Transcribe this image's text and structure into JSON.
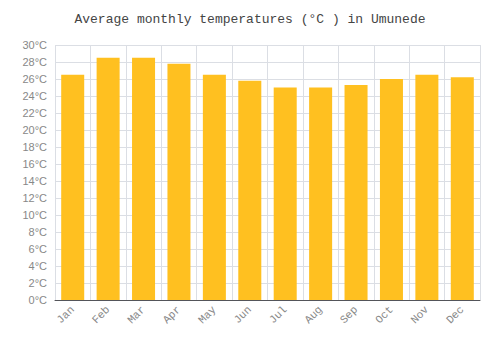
{
  "chart_data": {
    "type": "bar",
    "title": "Average monthly temperatures (°C ) in Umunede",
    "categories": [
      "Jan",
      "Feb",
      "Mar",
      "Apr",
      "May",
      "Jun",
      "Jul",
      "Aug",
      "Sep",
      "Oct",
      "Nov",
      "Dec"
    ],
    "values": [
      26.5,
      28.5,
      28.5,
      27.8,
      26.5,
      25.8,
      25.0,
      25.0,
      25.3,
      26.0,
      26.5,
      26.2
    ],
    "color": "#FFC020",
    "ylim": [
      0,
      30
    ],
    "yticks": [
      {
        "value": 0,
        "label": "0°C"
      },
      {
        "value": 2,
        "label": "2°C"
      },
      {
        "value": 4,
        "label": "4°C"
      },
      {
        "value": 6,
        "label": "6°C"
      },
      {
        "value": 8,
        "label": "8°C"
      },
      {
        "value": 10,
        "label": "10°C"
      },
      {
        "value": 12,
        "label": "12°C"
      },
      {
        "value": 14,
        "label": "14°C"
      },
      {
        "value": 16,
        "label": "16°C"
      },
      {
        "value": 18,
        "label": "18°C"
      },
      {
        "value": 20,
        "label": "20°C"
      },
      {
        "value": 22,
        "label": "22°C"
      },
      {
        "value": 24,
        "label": "24°C"
      },
      {
        "value": 26,
        "label": "26°C"
      },
      {
        "value": 28,
        "label": "28°C"
      },
      {
        "value": 30,
        "label": "30°C"
      }
    ],
    "grid": true
  }
}
